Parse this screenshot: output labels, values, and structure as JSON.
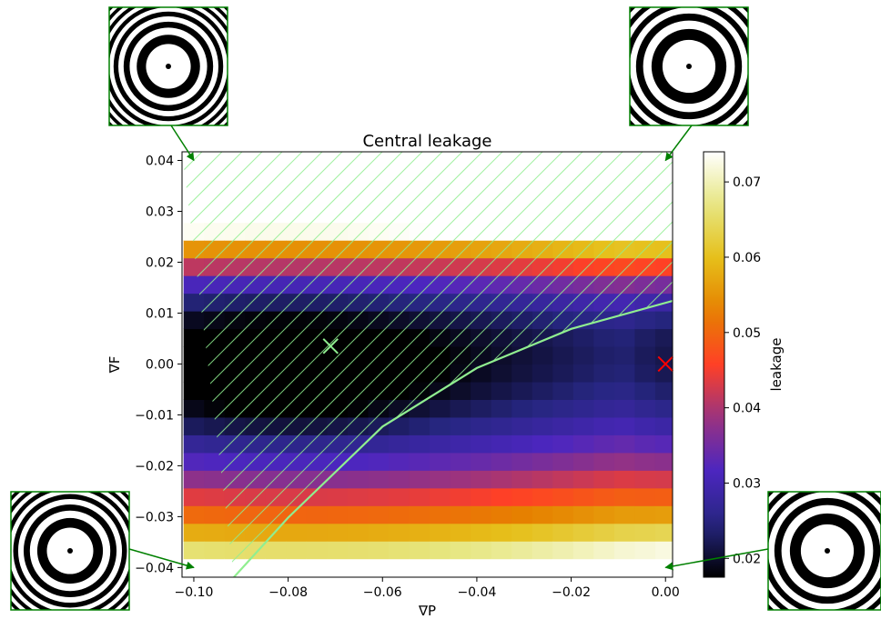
{
  "chart_data": {
    "type": "heatmap",
    "title": "Central leakage",
    "xlabel": "∇P",
    "ylabel": "∇F",
    "xlim": [
      -0.1025,
      0.0015
    ],
    "ylim": [
      -0.0419,
      0.0417
    ],
    "x_ticks": [
      -0.1,
      -0.08,
      -0.06,
      -0.04,
      -0.02,
      0.0
    ],
    "x_tick_labels": [
      "−0.10",
      "−0.08",
      "−0.06",
      "−0.04",
      "−0.02",
      "0.00"
    ],
    "y_ticks": [
      0.04,
      0.03,
      0.02,
      0.01,
      0.0,
      -0.01,
      -0.02,
      -0.03,
      -0.04
    ],
    "y_tick_labels": [
      "0.04",
      "0.03",
      "0.02",
      "0.01",
      "0.00",
      "−0.01",
      "−0.02",
      "−0.03",
      "−0.04"
    ],
    "colorbar": {
      "label": "leakage",
      "range": [
        0.0175,
        0.074
      ],
      "ticks": [
        0.07,
        0.06,
        0.05,
        0.04,
        0.03,
        0.02
      ],
      "tick_labels": [
        "0.07",
        "0.06",
        "0.05",
        "0.04",
        "0.03",
        "0.02"
      ],
      "colormap": "CMRmap"
    },
    "grid": {
      "nx": 24,
      "ny": 24,
      "p_range": [
        -0.1,
        0.0
      ],
      "f_range": [
        -0.04,
        0.04
      ]
    },
    "field_model": {
      "minimum": {
        "p": -0.08,
        "f": 0.002,
        "value": 0.018
      },
      "f_coeff": 32.0,
      "p_coeff": 1.2,
      "positive_f_boost": 3.0,
      "dark_valley": {
        "f": -0.003,
        "width": 0.0009,
        "depth": 0.0065
      },
      "right_column_trough": {
        "p": 0.0,
        "width": 0.006,
        "depth": 0.004
      }
    },
    "boundary_curve": {
      "color": "#90ee90",
      "points": [
        [
          -0.0915,
          -0.0419
        ],
        [
          -0.08,
          -0.0302
        ],
        [
          -0.06,
          -0.0123
        ],
        [
          -0.04,
          -0.0008
        ],
        [
          -0.02,
          0.0069
        ],
        [
          0.0015,
          0.0124
        ]
      ]
    },
    "hatched_region": {
      "side": "above-left of curve",
      "color": "#90ee90"
    },
    "markers": [
      {
        "name": "optimum",
        "p": -0.071,
        "f": 0.0035,
        "symbol": "x",
        "color": "#90ee90"
      },
      {
        "name": "nominal",
        "p": 0.0,
        "f": 0.0,
        "symbol": "x",
        "color": "#ff0000"
      }
    ],
    "corner_insets": [
      {
        "corner": "top-left",
        "rings": 14,
        "p": -0.1,
        "f": 0.04,
        "color": "#008000"
      },
      {
        "corner": "top-right",
        "rings": 10,
        "p": 0.0,
        "f": 0.04,
        "color": "#008000"
      },
      {
        "corner": "bottom-left",
        "rings": 13,
        "p": -0.1,
        "f": -0.04,
        "color": "#008000"
      },
      {
        "corner": "bottom-right",
        "rings": 10,
        "p": 0.0,
        "f": -0.04,
        "color": "#008000"
      }
    ]
  }
}
